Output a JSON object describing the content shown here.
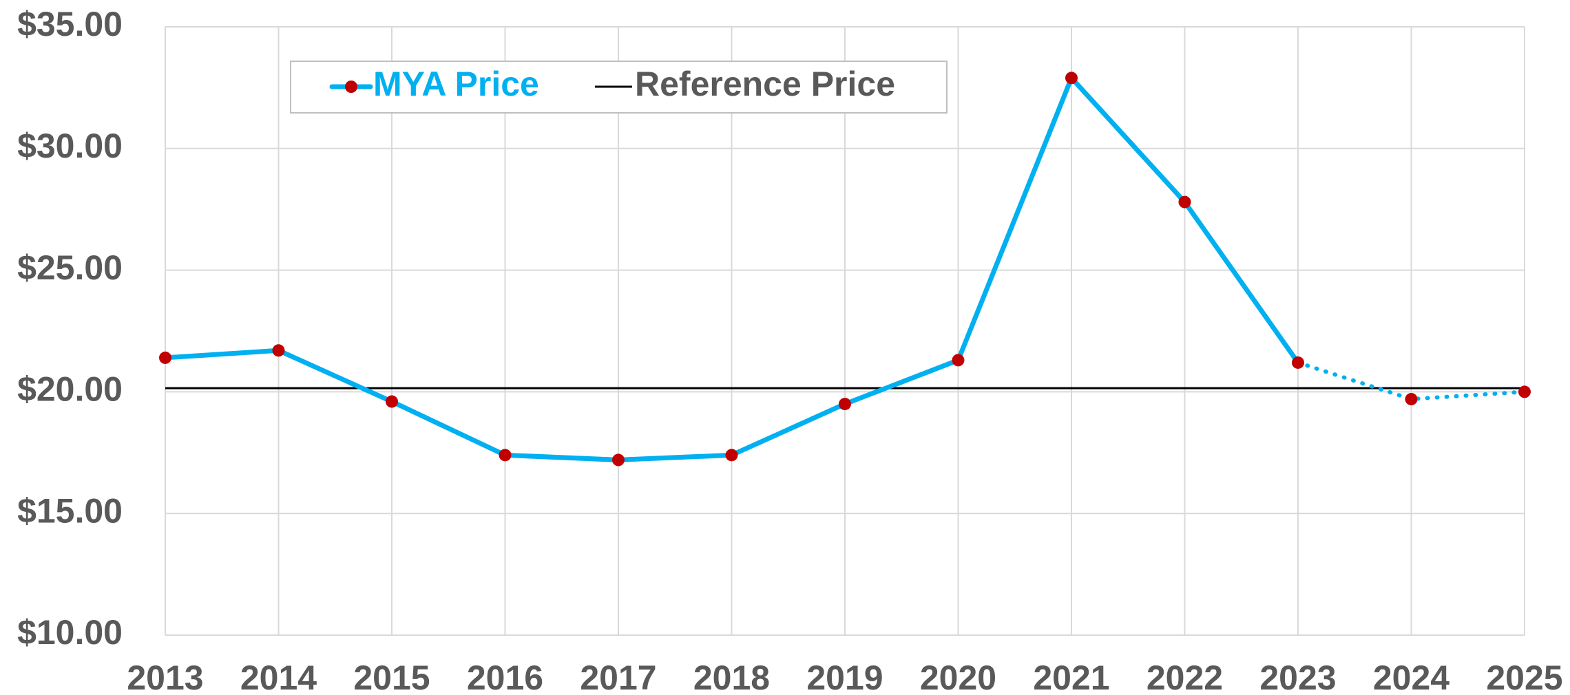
{
  "chart_data": {
    "type": "line",
    "x": [
      2013,
      2014,
      2015,
      2016,
      2017,
      2018,
      2019,
      2020,
      2021,
      2022,
      2023,
      2024,
      2025
    ],
    "series": [
      {
        "name": "MYA Price",
        "color": "#00b0f0",
        "marker_color": "#c00000",
        "values": [
          21.4,
          21.7,
          19.6,
          17.4,
          17.2,
          17.4,
          19.5,
          21.3,
          32.9,
          27.8,
          21.2,
          19.7,
          20.0
        ],
        "dotted_from": 2023
      }
    ],
    "reference": {
      "name": "Reference Price",
      "value": 20.15,
      "color": "#000000"
    },
    "xlim": [
      2013,
      2025
    ],
    "xticks": [
      2013,
      2014,
      2015,
      2016,
      2017,
      2018,
      2019,
      2020,
      2021,
      2022,
      2023,
      2024,
      2025
    ],
    "ylim": [
      10,
      35
    ],
    "yticks": [
      {
        "value": 10,
        "label": "$10.00"
      },
      {
        "value": 15,
        "label": "$15.00"
      },
      {
        "value": 20,
        "label": "$20.00"
      },
      {
        "value": 25,
        "label": "$25.00"
      },
      {
        "value": 30,
        "label": "$30.00"
      },
      {
        "value": 35,
        "label": "$35.00"
      }
    ],
    "grid": true,
    "legend": "top-left"
  }
}
